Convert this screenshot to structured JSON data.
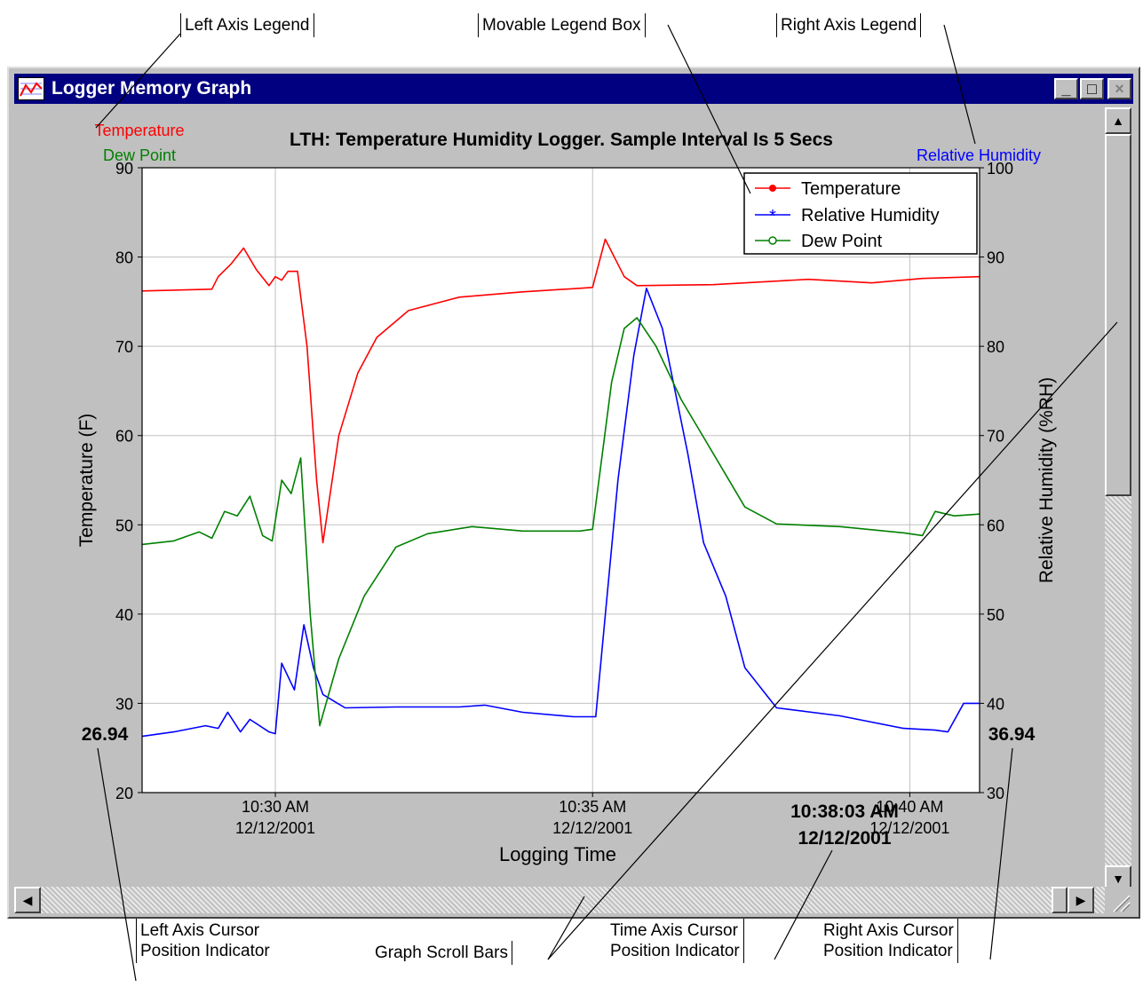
{
  "callouts": {
    "left_axis_legend": "Left Axis Legend",
    "movable_legend_box": "Movable Legend Box",
    "right_axis_legend": "Right Axis Legend",
    "left_cursor_line1": "Left Axis Cursor",
    "left_cursor_line2": "Position Indicator",
    "graph_scroll_bars": "Graph Scroll Bars",
    "time_cursor_line1": "Time Axis Cursor",
    "time_cursor_line2": "Position Indicator",
    "right_cursor_line1": "Right Axis Cursor",
    "right_cursor_line2": "Position Indicator"
  },
  "window": {
    "title": "Logger Memory Graph",
    "minimize_glyph": "_",
    "maximize_glyph": "□",
    "close_glyph": "×",
    "scroll_up_glyph": "▲",
    "scroll_down_glyph": "▼",
    "scroll_left_glyph": "◀",
    "scroll_right_glyph": "▶"
  },
  "colors": {
    "temperature": "#ff0000",
    "humidity": "#0000ff",
    "dew_point": "#008000",
    "title_bar": "#000080",
    "window_face": "#c0c0c0"
  },
  "cursor": {
    "left_value": "26.94",
    "right_value": "36.94",
    "time_line1": "10:38:03 AM",
    "time_line2": "12/12/2001"
  },
  "chart_data": {
    "type": "line",
    "title": "LTH: Temperature Humidity Logger.  Sample Interval Is 5 Secs",
    "xlabel": "Logging Time",
    "ylabel_left": "Temperature (F)",
    "ylabel_right": "Relative Humidity  (%RH)",
    "left_axis_legend": [
      "Temperature",
      "Dew Point"
    ],
    "right_axis_legend": [
      "Relative Humidity"
    ],
    "y_left_range": [
      20,
      90
    ],
    "y_right_range": [
      30,
      100
    ],
    "y_left_ticks": [
      "20",
      "30",
      "40",
      "50",
      "60",
      "70",
      "80",
      "90"
    ],
    "y_right_ticks": [
      "30",
      "40",
      "50",
      "60",
      "70",
      "80",
      "90",
      "100"
    ],
    "x_range": [
      0,
      13.2
    ],
    "x_ticks": [
      {
        "time": "10:30 AM",
        "date": "12/12/2001",
        "min": 2.1
      },
      {
        "time": "10:35 AM",
        "date": "12/12/2001",
        "min": 7.1
      },
      {
        "time": "10:40 AM",
        "date": "12/12/2001",
        "min": 12.1
      }
    ],
    "grid": true,
    "legend_position": "top-right",
    "series": [
      {
        "name": "Temperature",
        "axis": "left",
        "color": "#ff0000",
        "points": [
          [
            0,
            76.2
          ],
          [
            1.1,
            76.4
          ],
          [
            1.2,
            77.8
          ],
          [
            1.4,
            79.2
          ],
          [
            1.6,
            81
          ],
          [
            1.8,
            78.6
          ],
          [
            2,
            76.8
          ],
          [
            2.1,
            77.8
          ],
          [
            2.2,
            77.4
          ],
          [
            2.3,
            78.4
          ],
          [
            2.45,
            78.4
          ],
          [
            2.6,
            70
          ],
          [
            2.75,
            55
          ],
          [
            2.85,
            48
          ],
          [
            3.1,
            60
          ],
          [
            3.4,
            67
          ],
          [
            3.7,
            71
          ],
          [
            4.2,
            74
          ],
          [
            5,
            75.5
          ],
          [
            6,
            76.1
          ],
          [
            6.9,
            76.5
          ],
          [
            7.1,
            76.6
          ],
          [
            7.3,
            82
          ],
          [
            7.6,
            77.8
          ],
          [
            7.8,
            76.8
          ],
          [
            9,
            76.9
          ],
          [
            10.5,
            77.5
          ],
          [
            11.5,
            77.1
          ],
          [
            12.3,
            77.6
          ],
          [
            13.2,
            77.8
          ]
        ]
      },
      {
        "name": "Relative Humidity",
        "axis": "right",
        "color": "#0000ff",
        "points": [
          [
            0,
            36.3
          ],
          [
            0.5,
            36.8
          ],
          [
            1,
            37.5
          ],
          [
            1.2,
            37.2
          ],
          [
            1.35,
            39
          ],
          [
            1.55,
            36.8
          ],
          [
            1.7,
            38.2
          ],
          [
            2,
            36.8
          ],
          [
            2.1,
            36.6
          ],
          [
            2.2,
            44.5
          ],
          [
            2.4,
            41.5
          ],
          [
            2.55,
            48.8
          ],
          [
            2.7,
            44
          ],
          [
            2.85,
            41
          ],
          [
            3.2,
            39.5
          ],
          [
            4,
            39.6
          ],
          [
            5,
            39.6
          ],
          [
            5.4,
            39.8
          ],
          [
            6,
            39
          ],
          [
            6.8,
            38.5
          ],
          [
            7.15,
            38.5
          ],
          [
            7.5,
            65
          ],
          [
            7.75,
            79
          ],
          [
            7.95,
            86.5
          ],
          [
            8.2,
            82
          ],
          [
            8.4,
            75
          ],
          [
            8.6,
            68
          ],
          [
            8.85,
            58
          ],
          [
            9.2,
            52
          ],
          [
            9.5,
            44
          ],
          [
            10,
            39.5
          ],
          [
            11,
            38.6
          ],
          [
            12,
            37.2
          ],
          [
            12.5,
            37
          ],
          [
            12.7,
            36.8
          ],
          [
            12.95,
            40
          ],
          [
            13.2,
            40
          ]
        ]
      },
      {
        "name": "Dew Point",
        "axis": "left",
        "color": "#008000",
        "points": [
          [
            0,
            47.8
          ],
          [
            0.5,
            48.2
          ],
          [
            0.9,
            49.2
          ],
          [
            1.1,
            48.5
          ],
          [
            1.3,
            51.5
          ],
          [
            1.5,
            51
          ],
          [
            1.7,
            53.2
          ],
          [
            1.9,
            48.8
          ],
          [
            2.05,
            48.2
          ],
          [
            2.2,
            55
          ],
          [
            2.35,
            53.5
          ],
          [
            2.5,
            57.5
          ],
          [
            2.65,
            40
          ],
          [
            2.8,
            27.5
          ],
          [
            3.1,
            35
          ],
          [
            3.5,
            42
          ],
          [
            4,
            47.5
          ],
          [
            4.5,
            49
          ],
          [
            5.2,
            49.8
          ],
          [
            6,
            49.3
          ],
          [
            6.9,
            49.3
          ],
          [
            7.1,
            49.5
          ],
          [
            7.4,
            66
          ],
          [
            7.6,
            72
          ],
          [
            7.8,
            73.2
          ],
          [
            8.1,
            70
          ],
          [
            8.5,
            64
          ],
          [
            9,
            58
          ],
          [
            9.5,
            52
          ],
          [
            10,
            50.1
          ],
          [
            11,
            49.8
          ],
          [
            12,
            49.1
          ],
          [
            12.3,
            48.8
          ],
          [
            12.5,
            51.5
          ],
          [
            12.8,
            51
          ],
          [
            13.2,
            51.2
          ]
        ]
      }
    ]
  }
}
